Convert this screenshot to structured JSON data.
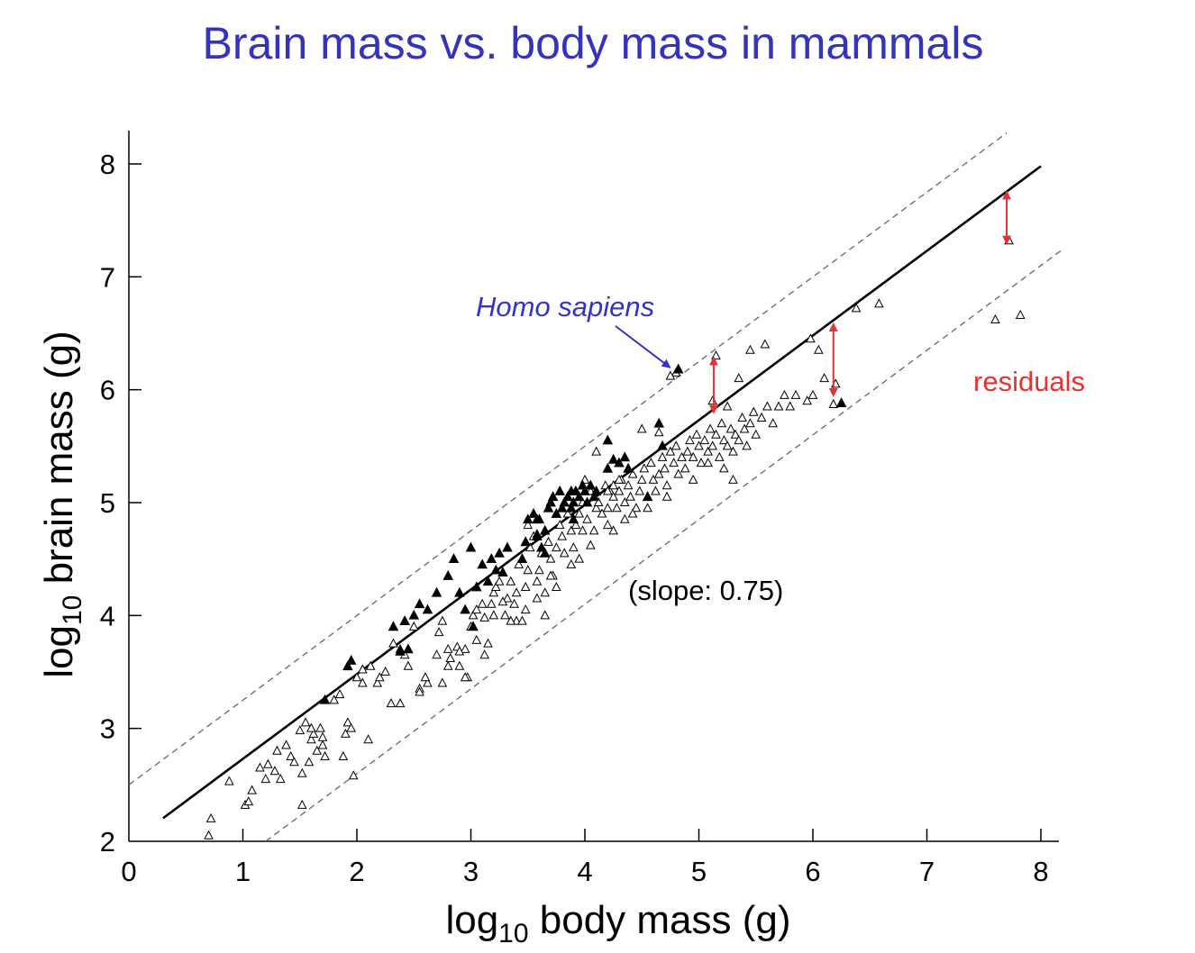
{
  "slide": {
    "title": "Brain mass vs. body mass in mammals",
    "title_color": "#3333bb"
  },
  "chart_data": {
    "type": "scatter",
    "xlabel": {
      "prefix": "log",
      "sub": "10",
      "suffix": " body mass (g)"
    },
    "ylabel": {
      "prefix": "log",
      "sub": "10",
      "suffix": " brain mass (g)"
    },
    "xlim": [
      0,
      8
    ],
    "ylim": [
      2,
      8
    ],
    "xticks": [
      0,
      1,
      2,
      3,
      4,
      5,
      6,
      7,
      8
    ],
    "yticks": [
      2,
      3,
      4,
      5,
      6,
      7,
      8
    ],
    "grid": false,
    "regression_line": {
      "slope": 0.75,
      "intercept": 1.98,
      "x_range": [
        0.3,
        8.0
      ],
      "style": "solid"
    },
    "bounds": [
      {
        "style": "dashed",
        "slope": 0.75,
        "intercept": 2.5,
        "x_range": [
          0,
          7.7
        ]
      },
      {
        "style": "dashed",
        "slope": 0.75,
        "intercept": 1.1,
        "x_range": [
          1.2,
          8.2
        ]
      }
    ],
    "series": [
      {
        "marker": "open-triangle",
        "points": [
          [
            0.72,
            2.2
          ],
          [
            0.7,
            2.05
          ],
          [
            0.88,
            2.53
          ],
          [
            1.02,
            2.32
          ],
          [
            1.05,
            2.35
          ],
          [
            1.08,
            2.45
          ],
          [
            1.15,
            2.65
          ],
          [
            1.2,
            2.55
          ],
          [
            1.22,
            2.68
          ],
          [
            1.28,
            2.62
          ],
          [
            1.3,
            2.8
          ],
          [
            1.33,
            2.55
          ],
          [
            1.38,
            2.85
          ],
          [
            1.42,
            2.75
          ],
          [
            1.45,
            2.7
          ],
          [
            1.5,
            2.98
          ],
          [
            1.52,
            2.6
          ],
          [
            1.55,
            3.05
          ],
          [
            1.58,
            2.7
          ],
          [
            1.6,
            2.9
          ],
          [
            1.62,
            2.95
          ],
          [
            1.65,
            2.8
          ],
          [
            1.68,
            3.0
          ],
          [
            1.7,
            2.85
          ],
          [
            1.72,
            2.75
          ],
          [
            1.52,
            2.32
          ],
          [
            1.8,
            3.25
          ],
          [
            1.85,
            3.3
          ],
          [
            1.88,
            2.75
          ],
          [
            1.9,
            2.95
          ],
          [
            1.92,
            3.05
          ],
          [
            1.95,
            3.0
          ],
          [
            1.97,
            2.58
          ],
          [
            2.0,
            3.45
          ],
          [
            2.05,
            3.4
          ],
          [
            2.1,
            2.9
          ],
          [
            2.12,
            3.55
          ],
          [
            2.18,
            3.4
          ],
          [
            2.25,
            3.5
          ],
          [
            2.32,
            3.75
          ],
          [
            2.38,
            3.7
          ],
          [
            2.42,
            3.65
          ],
          [
            2.3,
            3.22
          ],
          [
            2.38,
            3.22
          ],
          [
            2.45,
            3.55
          ],
          [
            2.5,
            3.9
          ],
          [
            2.55,
            3.35
          ],
          [
            2.62,
            3.4
          ],
          [
            2.7,
            3.65
          ],
          [
            2.72,
            3.85
          ],
          [
            2.75,
            3.95
          ],
          [
            2.8,
            3.7
          ],
          [
            2.82,
            3.62
          ],
          [
            2.88,
            3.72
          ],
          [
            2.9,
            3.55
          ],
          [
            2.95,
            3.7
          ],
          [
            2.97,
            3.45
          ],
          [
            3.0,
            3.9
          ],
          [
            3.02,
            4.0
          ],
          [
            3.05,
            4.05
          ],
          [
            3.1,
            4.1
          ],
          [
            3.12,
            3.65
          ],
          [
            3.15,
            3.75
          ],
          [
            3.18,
            4.1
          ],
          [
            3.2,
            4.2
          ],
          [
            3.22,
            4.25
          ],
          [
            3.25,
            4.3
          ],
          [
            3.3,
            4.0
          ],
          [
            3.32,
            4.15
          ],
          [
            3.35,
            4.3
          ],
          [
            3.38,
            4.1
          ],
          [
            3.4,
            4.2
          ],
          [
            3.42,
            4.45
          ],
          [
            3.45,
            4.5
          ],
          [
            3.48,
            4.05
          ],
          [
            3.5,
            4.4
          ],
          [
            3.52,
            4.6
          ],
          [
            3.55,
            4.7
          ],
          [
            3.58,
            4.3
          ],
          [
            3.6,
            4.4
          ],
          [
            3.62,
            4.55
          ],
          [
            3.65,
            4.0
          ],
          [
            3.68,
            4.65
          ],
          [
            3.7,
            4.5
          ],
          [
            3.72,
            4.35
          ],
          [
            3.75,
            4.6
          ],
          [
            3.78,
            4.8
          ],
          [
            3.8,
            4.7
          ],
          [
            3.82,
            4.55
          ],
          [
            3.85,
            4.9
          ],
          [
            3.88,
            4.75
          ],
          [
            3.9,
            4.6
          ],
          [
            3.92,
            4.8
          ],
          [
            3.95,
            4.9
          ],
          [
            3.98,
            5.0
          ],
          [
            4.02,
            4.85
          ],
          [
            4.05,
            5.1
          ],
          [
            4.08,
            4.75
          ],
          [
            4.1,
            4.95
          ],
          [
            4.12,
            5.0
          ],
          [
            4.15,
            4.9
          ],
          [
            4.18,
            5.15
          ],
          [
            4.2,
            4.8
          ],
          [
            4.22,
            5.1
          ],
          [
            4.25,
            5.05
          ],
          [
            4.28,
            4.95
          ],
          [
            4.3,
            5.1
          ],
          [
            4.32,
            5.2
          ],
          [
            4.35,
            5.0
          ],
          [
            4.38,
            5.15
          ],
          [
            4.4,
            5.05
          ],
          [
            4.42,
            5.25
          ],
          [
            4.45,
            4.95
          ],
          [
            4.48,
            5.1
          ],
          [
            4.5,
            5.2
          ],
          [
            4.52,
            5.3
          ],
          [
            4.55,
            5.05
          ],
          [
            4.58,
            5.35
          ],
          [
            4.6,
            5.2
          ],
          [
            4.62,
            5.1
          ],
          [
            4.65,
            5.25
          ],
          [
            4.68,
            5.4
          ],
          [
            4.7,
            5.3
          ],
          [
            4.72,
            5.15
          ],
          [
            4.75,
            5.45
          ],
          [
            4.78,
            5.35
          ],
          [
            4.8,
            5.5
          ],
          [
            4.82,
            5.25
          ],
          [
            4.85,
            5.4
          ],
          [
            4.88,
            5.3
          ],
          [
            4.9,
            5.45
          ],
          [
            4.92,
            5.55
          ],
          [
            4.95,
            5.4
          ],
          [
            4.98,
            5.6
          ],
          [
            5.0,
            5.5
          ],
          [
            5.02,
            5.35
          ],
          [
            5.05,
            5.55
          ],
          [
            5.08,
            5.45
          ],
          [
            5.1,
            5.65
          ],
          [
            5.12,
            5.5
          ],
          [
            5.15,
            5.6
          ],
          [
            5.18,
            5.4
          ],
          [
            5.2,
            5.7
          ],
          [
            5.22,
            5.55
          ],
          [
            5.25,
            5.5
          ],
          [
            5.28,
            5.65
          ],
          [
            5.3,
            5.45
          ],
          [
            5.32,
            5.6
          ],
          [
            5.35,
            5.55
          ],
          [
            5.38,
            5.75
          ],
          [
            5.4,
            5.65
          ],
          [
            5.42,
            5.5
          ],
          [
            5.45,
            5.7
          ],
          [
            5.48,
            5.8
          ],
          [
            5.5,
            5.6
          ],
          [
            5.55,
            5.75
          ],
          [
            5.6,
            5.85
          ],
          [
            5.65,
            5.7
          ],
          [
            5.7,
            5.85
          ],
          [
            5.75,
            5.95
          ],
          [
            5.8,
            5.85
          ],
          [
            5.85,
            5.95
          ],
          [
            5.95,
            5.9
          ],
          [
            6.0,
            5.95
          ],
          [
            6.05,
            6.35
          ],
          [
            6.1,
            6.1
          ],
          [
            6.18,
            5.87
          ],
          [
            6.2,
            6.05
          ],
          [
            5.15,
            6.3
          ],
          [
            5.12,
            5.9
          ],
          [
            5.25,
            5.85
          ],
          [
            5.35,
            6.1
          ],
          [
            5.45,
            6.35
          ],
          [
            5.58,
            6.4
          ],
          [
            5.98,
            6.45
          ],
          [
            6.38,
            6.72
          ],
          [
            6.58,
            6.76
          ],
          [
            7.72,
            7.32
          ],
          [
            7.6,
            6.62
          ],
          [
            7.82,
            6.66
          ],
          [
            4.8,
            6.15
          ],
          [
            4.75,
            6.12
          ],
          [
            4.65,
            5.62
          ],
          [
            4.5,
            5.65
          ],
          [
            4.3,
            5.2
          ],
          [
            4.2,
            5.1
          ],
          [
            3.98,
            4.75
          ],
          [
            4.05,
            4.62
          ],
          [
            3.7,
            4.35
          ],
          [
            3.58,
            4.15
          ],
          [
            3.4,
            3.95
          ],
          [
            3.2,
            4.0
          ],
          [
            2.95,
            3.45
          ],
          [
            2.75,
            3.4
          ],
          [
            2.55,
            3.32
          ],
          [
            2.6,
            3.45
          ],
          [
            2.05,
            3.52
          ],
          [
            2.2,
            3.45
          ],
          [
            1.6,
            3.0
          ],
          [
            1.7,
            2.92
          ],
          [
            5.3,
            5.2
          ],
          [
            5.22,
            5.3
          ],
          [
            5.08,
            5.35
          ],
          [
            4.95,
            5.2
          ],
          [
            4.72,
            5.05
          ],
          [
            4.55,
            4.95
          ],
          [
            4.42,
            4.9
          ],
          [
            4.35,
            4.85
          ],
          [
            4.25,
            4.75
          ],
          [
            4.2,
            4.95
          ],
          [
            3.95,
            4.5
          ],
          [
            3.88,
            4.45
          ],
          [
            3.75,
            4.25
          ],
          [
            3.65,
            4.2
          ],
          [
            3.48,
            4.25
          ],
          [
            3.45,
            3.95
          ],
          [
            3.35,
            3.95
          ],
          [
            3.28,
            4.12
          ],
          [
            3.12,
            3.98
          ],
          [
            3.05,
            3.78
          ],
          [
            2.9,
            3.68
          ],
          [
            2.8,
            3.55
          ],
          [
            4.0,
            5.2
          ],
          [
            4.25,
            5.15
          ],
          [
            4.1,
            5.45
          ],
          [
            3.5,
            4.8
          ],
          [
            3.58,
            4.72
          ]
        ]
      },
      {
        "marker": "filled-triangle",
        "points": [
          [
            1.72,
            3.25
          ],
          [
            1.92,
            3.55
          ],
          [
            1.95,
            3.6
          ],
          [
            2.32,
            3.9
          ],
          [
            2.42,
            3.95
          ],
          [
            2.5,
            4.0
          ],
          [
            2.55,
            4.1
          ],
          [
            2.62,
            4.05
          ],
          [
            2.38,
            3.68
          ],
          [
            2.45,
            3.7
          ],
          [
            2.7,
            4.2
          ],
          [
            2.8,
            4.35
          ],
          [
            2.85,
            4.5
          ],
          [
            2.9,
            4.2
          ],
          [
            2.95,
            4.05
          ],
          [
            3.0,
            4.6
          ],
          [
            3.02,
            3.9
          ],
          [
            3.05,
            4.25
          ],
          [
            3.1,
            4.45
          ],
          [
            3.15,
            4.3
          ],
          [
            3.18,
            4.5
          ],
          [
            3.22,
            4.4
          ],
          [
            3.25,
            4.55
          ],
          [
            3.28,
            4.38
          ],
          [
            3.32,
            4.6
          ],
          [
            3.45,
            4.5
          ],
          [
            3.48,
            4.65
          ],
          [
            3.5,
            4.85
          ],
          [
            3.55,
            4.9
          ],
          [
            3.58,
            4.7
          ],
          [
            3.6,
            4.85
          ],
          [
            3.62,
            4.6
          ],
          [
            3.65,
            4.75
          ],
          [
            3.68,
            4.95
          ],
          [
            3.7,
            5.0
          ],
          [
            3.72,
            5.05
          ],
          [
            3.75,
            4.9
          ],
          [
            3.78,
            5.1
          ],
          [
            3.8,
            4.95
          ],
          [
            3.82,
            5.0
          ],
          [
            3.85,
            5.05
          ],
          [
            3.88,
            5.1
          ],
          [
            3.9,
            5.0
          ],
          [
            3.92,
            5.1
          ],
          [
            3.95,
            5.05
          ],
          [
            3.98,
            5.15
          ],
          [
            4.0,
            5.1
          ],
          [
            4.02,
            5.0
          ],
          [
            3.88,
            4.95
          ],
          [
            3.9,
            4.85
          ],
          [
            4.05,
            5.15
          ],
          [
            4.08,
            5.05
          ],
          [
            4.1,
            5.1
          ],
          [
            4.2,
            5.3
          ],
          [
            4.25,
            5.38
          ],
          [
            4.3,
            5.35
          ],
          [
            4.35,
            5.4
          ],
          [
            4.38,
            5.3
          ],
          [
            4.65,
            5.7
          ],
          [
            4.68,
            5.5
          ],
          [
            4.82,
            6.18
          ],
          [
            6.25,
            5.88
          ],
          [
            4.55,
            5.05
          ],
          [
            4.2,
            5.55
          ],
          [
            3.58,
            4.85
          ],
          [
            3.65,
            4.55
          ]
        ]
      }
    ],
    "annotations": [
      {
        "text": "Homo sapiens",
        "color": "#3333cc",
        "style": "italic",
        "points_to": [
          4.78,
          6.18
        ]
      },
      {
        "text": "(slope: 0.75)",
        "color": "#000000"
      },
      {
        "text": "residuals",
        "color": "#e53333"
      }
    ],
    "residual_arrows": [
      {
        "x": 5.13,
        "y_from": 5.8,
        "y_to": 6.28,
        "color": "#e53333"
      },
      {
        "x": 6.18,
        "y_from": 5.95,
        "y_to": 6.58,
        "color": "#e53333"
      },
      {
        "x": 7.7,
        "y_from": 7.3,
        "y_to": 7.75,
        "color": "#e53333"
      }
    ]
  }
}
